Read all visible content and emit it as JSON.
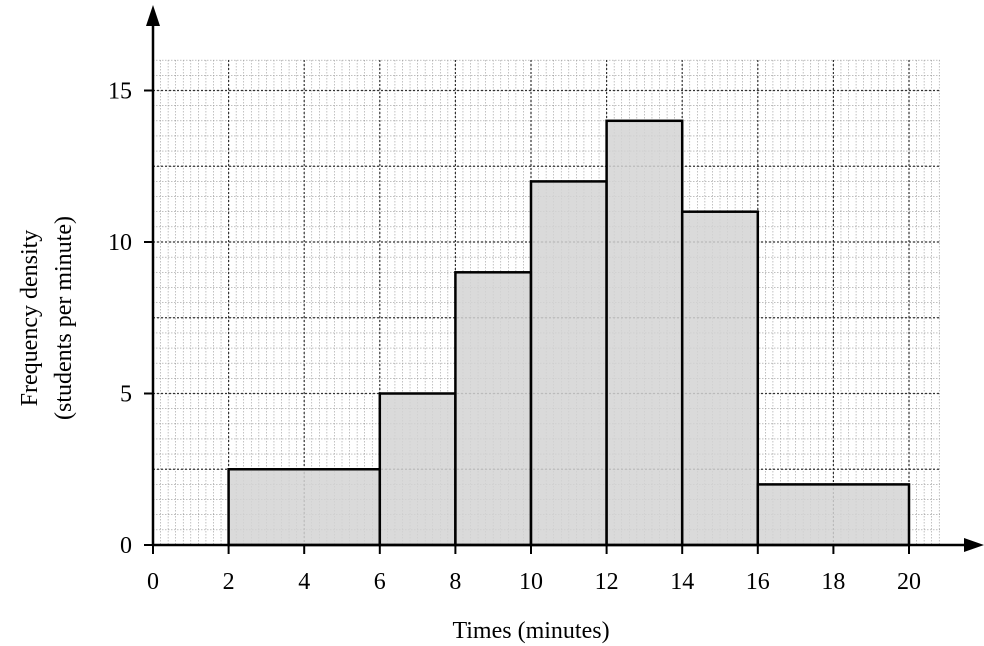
{
  "chart_data": {
    "type": "bar",
    "subtype": "histogram",
    "xlabel": "Times (minutes)",
    "ylabel": [
      "Frequency density",
      "(students per minute)"
    ],
    "xlim": [
      0,
      20
    ],
    "ylim": [
      0,
      15
    ],
    "x_ticks": [
      0,
      2,
      4,
      6,
      8,
      10,
      12,
      14,
      16,
      18,
      20
    ],
    "y_ticks": [
      0,
      5,
      10,
      15
    ],
    "grid": true,
    "bars": [
      {
        "x0": 2,
        "x1": 6,
        "y": 2.5
      },
      {
        "x0": 6,
        "x1": 8,
        "y": 5
      },
      {
        "x0": 8,
        "x1": 10,
        "y": 9
      },
      {
        "x0": 10,
        "x1": 12,
        "y": 12
      },
      {
        "x0": 12,
        "x1": 14,
        "y": 14
      },
      {
        "x0": 14,
        "x1": 16,
        "y": 11
      },
      {
        "x0": 16,
        "x1": 20,
        "y": 2
      }
    ],
    "bar_color": "#d4d4d4"
  }
}
